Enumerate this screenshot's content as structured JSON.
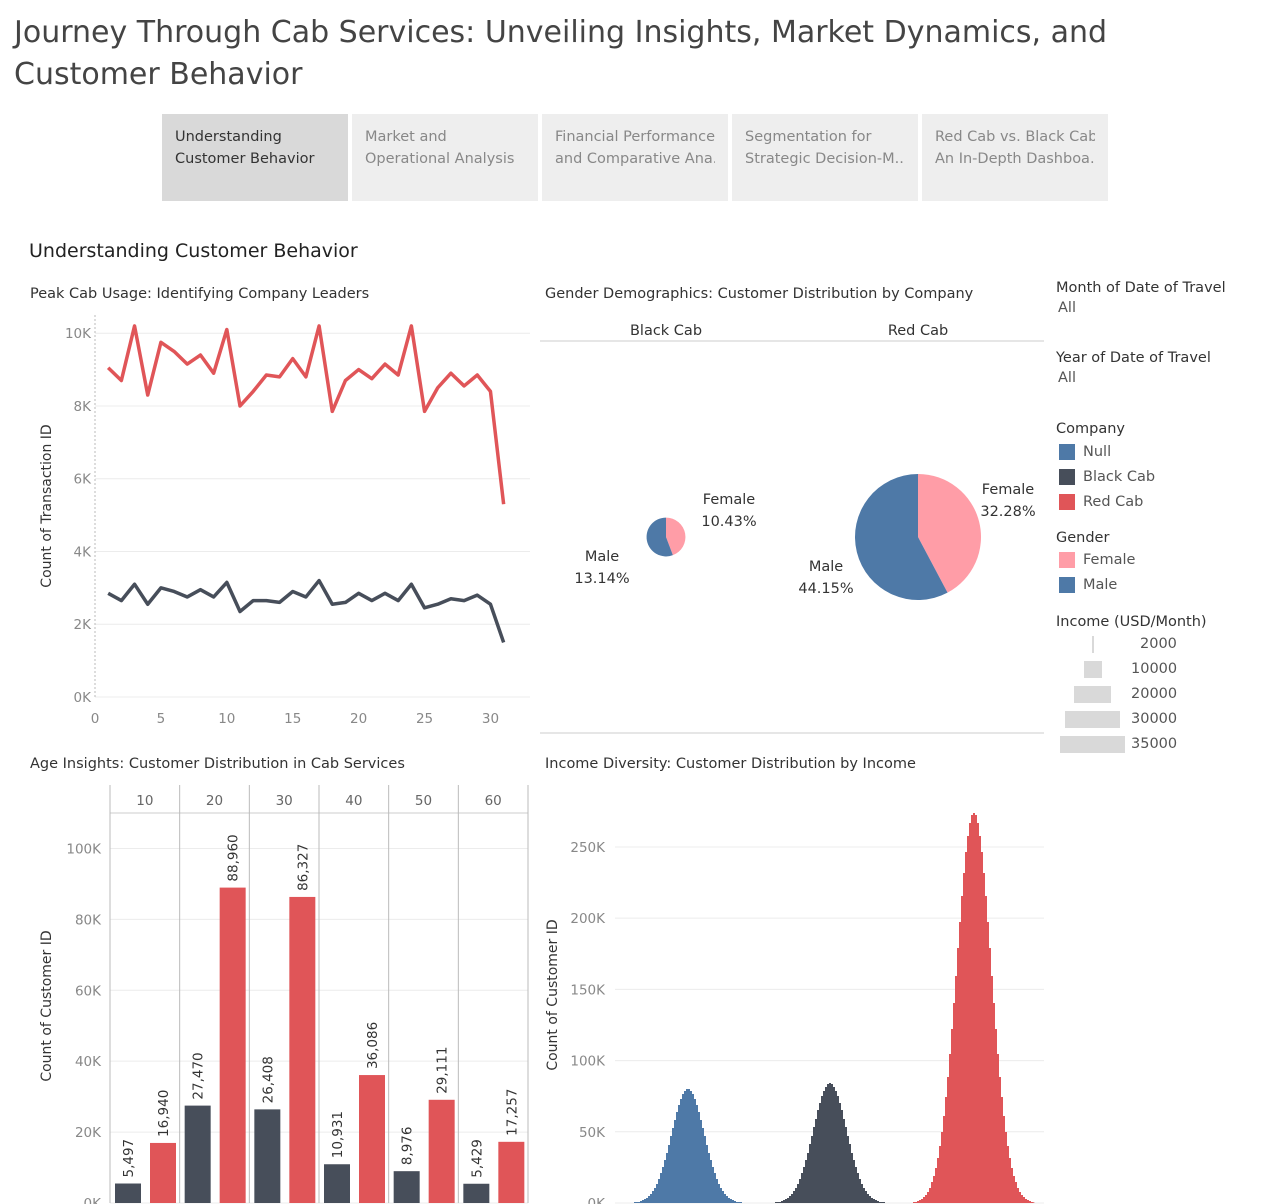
{
  "title": "Journey Through Cab Services: Unveiling Insights, Market Dynamics, and Customer Behavior",
  "tabs": [
    {
      "line1": "Understanding",
      "line2": "Customer Behavior",
      "active": true
    },
    {
      "line1": "Market and",
      "line2": "Operational Analysis",
      "active": false
    },
    {
      "line1": "Financial Performance",
      "line2": "and Comparative Ana..",
      "active": false
    },
    {
      "line1": "Segmentation for",
      "line2": "Strategic Decision-M..",
      "active": false
    },
    {
      "line1": "Red Cab vs. Black Cab:",
      "line2": "An In-Depth Dashboa..",
      "active": false
    }
  ],
  "section_title": "Understanding Customer Behavior",
  "colors": {
    "red": "#e05558",
    "black": "#474e5a",
    "blue": "#4e79a7",
    "pink": "#ff9da7",
    "grid": "#ececec"
  },
  "filters": {
    "month": {
      "label": "Month of Date of Travel",
      "value": "All"
    },
    "year": {
      "label": "Year of Date of Travel",
      "value": "All"
    }
  },
  "legend": {
    "company_title": "Company",
    "company": [
      {
        "label": "Null",
        "color": "#4e79a7"
      },
      {
        "label": "Black Cab",
        "color": "#474e5a"
      },
      {
        "label": "Red Cab",
        "color": "#e05558"
      }
    ],
    "gender_title": "Gender",
    "gender": [
      {
        "label": "Female",
        "color": "#ff9da7"
      },
      {
        "label": "Male",
        "color": "#4e79a7"
      }
    ],
    "income_title": "Income (USD/Month)",
    "income": [
      {
        "label": "2000",
        "value": 2000
      },
      {
        "label": "10000",
        "value": 10000
      },
      {
        "label": "20000",
        "value": 20000
      },
      {
        "label": "30000",
        "value": 30000
      },
      {
        "label": "35000",
        "value": 35000
      }
    ]
  },
  "chart_data": [
    {
      "id": "peak-usage",
      "type": "line",
      "title": "Peak Cab Usage: Identifying Company Leaders",
      "xlabel": "",
      "ylabel": "Count of Transaction ID",
      "x": [
        1,
        2,
        3,
        4,
        5,
        6,
        7,
        8,
        9,
        10,
        11,
        12,
        13,
        14,
        15,
        16,
        17,
        18,
        19,
        20,
        21,
        22,
        23,
        24,
        25,
        26,
        27,
        28,
        29,
        30,
        31
      ],
      "xlim": [
        0,
        33
      ],
      "ylim": [
        0,
        10500
      ],
      "xticks": [
        0,
        5,
        10,
        15,
        20,
        25,
        30
      ],
      "yticks": [
        0,
        2000,
        4000,
        6000,
        8000,
        10000
      ],
      "ytick_labels": [
        "0K",
        "2K",
        "4K",
        "6K",
        "8K",
        "10K"
      ],
      "series": [
        {
          "company": "Red Cab",
          "values": [
            9050,
            8700,
            10200,
            8300,
            9750,
            9500,
            9150,
            9400,
            8900,
            10100,
            8000,
            8400,
            8850,
            8800,
            9300,
            8800,
            10200,
            7850,
            8700,
            9000,
            8750,
            9150,
            8850,
            10200,
            7850,
            8500,
            8900,
            8550,
            8850,
            8400,
            5300
          ]
        },
        {
          "company": "Black Cab",
          "values": [
            2850,
            2650,
            3100,
            2550,
            3000,
            2900,
            2750,
            2950,
            2750,
            3150,
            2350,
            2650,
            2650,
            2600,
            2900,
            2750,
            3200,
            2550,
            2600,
            2850,
            2650,
            2850,
            2650,
            3100,
            2450,
            2550,
            2700,
            2650,
            2800,
            2550,
            1500
          ]
        }
      ]
    },
    {
      "id": "gender-demographics",
      "type": "pie",
      "title": "Gender Demographics: Customer Distribution by Company",
      "columns": [
        {
          "company": "Black Cab",
          "slices": [
            {
              "gender": "Female",
              "label": "Female",
              "value_label": "10.43%",
              "value": 10.43
            },
            {
              "gender": "Male",
              "label": "Male",
              "value_label": "13.14%",
              "value": 13.14
            }
          ]
        },
        {
          "company": "Red Cab",
          "slices": [
            {
              "gender": "Female",
              "label": "Female",
              "value_label": "32.28%",
              "value": 32.28
            },
            {
              "gender": "Male",
              "label": "Male",
              "value_label": "44.15%",
              "value": 44.15
            }
          ]
        }
      ]
    },
    {
      "id": "age-insights",
      "type": "bar",
      "title": "Age Insights: Customer Distribution in Cab Services",
      "ylabel": "Count of Customer ID",
      "categories": [
        "10",
        "20",
        "30",
        "40",
        "50",
        "60"
      ],
      "ylim": [
        0,
        110000
      ],
      "yticks": [
        0,
        20000,
        40000,
        60000,
        80000,
        100000
      ],
      "ytick_labels": [
        "0K",
        "20K",
        "40K",
        "60K",
        "80K",
        "100K"
      ],
      "series": [
        {
          "company": "Black Cab",
          "values": [
            5497,
            27470,
            26408,
            10931,
            8976,
            5429
          ],
          "labels": [
            "5,497",
            "27,470",
            "26,408",
            "10,931",
            "8,976",
            "5,429"
          ]
        },
        {
          "company": "Red Cab",
          "values": [
            16940,
            88960,
            86327,
            36086,
            29111,
            17257
          ],
          "labels": [
            "16,940",
            "88,960",
            "86,327",
            "36,086",
            "29,111",
            "17,257"
          ]
        }
      ]
    },
    {
      "id": "income-diversity",
      "type": "area",
      "title": "Income Diversity: Customer Distribution by Income",
      "ylabel": "Count of Customer ID",
      "ylim": [
        0,
        290000
      ],
      "yticks": [
        0,
        50000,
        100000,
        150000,
        200000,
        250000
      ],
      "ytick_labels": [
        "0K",
        "50K",
        "100K",
        "150K",
        "200K",
        "250K"
      ],
      "series": [
        {
          "company": "Null",
          "peak": 80000
        },
        {
          "company": "Black Cab",
          "peak": 84000
        },
        {
          "company": "Red Cab",
          "peak": 274000
        }
      ]
    }
  ]
}
